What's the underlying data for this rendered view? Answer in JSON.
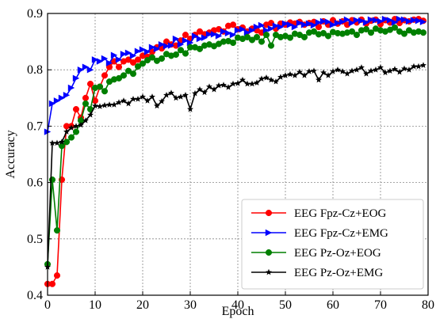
{
  "chart_data": {
    "type": "line",
    "title": "",
    "xlabel": "Epoch",
    "ylabel": "Accuracy",
    "xlim": [
      0,
      80
    ],
    "ylim": [
      0.4,
      0.9
    ],
    "xticks": [
      0,
      10,
      20,
      30,
      40,
      50,
      60,
      70,
      80
    ],
    "yticks": [
      0.4,
      0.5,
      0.6,
      0.7,
      0.8,
      0.9
    ],
    "grid": true,
    "legend_position": "bottom-right",
    "x": [
      0,
      1,
      2,
      3,
      4,
      5,
      6,
      7,
      8,
      9,
      10,
      11,
      12,
      13,
      14,
      15,
      16,
      17,
      18,
      19,
      20,
      21,
      22,
      23,
      24,
      25,
      26,
      27,
      28,
      29,
      30,
      31,
      32,
      33,
      34,
      35,
      36,
      37,
      38,
      39,
      40,
      41,
      42,
      43,
      44,
      45,
      46,
      47,
      48,
      49,
      50,
      51,
      52,
      53,
      54,
      55,
      56,
      57,
      58,
      59,
      60,
      61,
      62,
      63,
      64,
      65,
      66,
      67,
      68,
      69,
      70,
      71,
      72,
      73,
      74,
      75,
      76,
      77,
      78,
      79
    ],
    "series": [
      {
        "name": "EEG Fpz-Cz+EOG",
        "color": "#ff0000",
        "marker": "circle",
        "values": [
          0.42,
          0.42,
          0.435,
          0.605,
          0.7,
          0.7,
          0.73,
          0.715,
          0.75,
          0.775,
          0.745,
          0.77,
          0.79,
          0.805,
          0.815,
          0.805,
          0.815,
          0.818,
          0.813,
          0.818,
          0.825,
          0.823,
          0.832,
          0.84,
          0.838,
          0.85,
          0.845,
          0.843,
          0.852,
          0.862,
          0.855,
          0.862,
          0.868,
          0.863,
          0.866,
          0.87,
          0.872,
          0.868,
          0.878,
          0.88,
          0.872,
          0.875,
          0.868,
          0.873,
          0.87,
          0.866,
          0.88,
          0.883,
          0.873,
          0.882,
          0.88,
          0.884,
          0.882,
          0.885,
          0.88,
          0.883,
          0.885,
          0.876,
          0.886,
          0.88,
          0.888,
          0.882,
          0.886,
          0.88,
          0.888,
          0.884,
          0.889,
          0.882,
          0.887,
          0.889,
          0.881,
          0.888,
          0.884,
          0.89,
          0.883,
          0.888,
          0.886,
          0.889,
          0.89,
          0.887
        ]
      },
      {
        "name": "EEG Fpz-Cz+EMG",
        "color": "#0000ff",
        "marker": "triangle-right",
        "values": [
          0.69,
          0.74,
          0.745,
          0.75,
          0.755,
          0.768,
          0.785,
          0.8,
          0.805,
          0.8,
          0.818,
          0.815,
          0.82,
          0.812,
          0.826,
          0.818,
          0.828,
          0.83,
          0.825,
          0.833,
          0.836,
          0.832,
          0.84,
          0.837,
          0.845,
          0.842,
          0.843,
          0.855,
          0.845,
          0.852,
          0.848,
          0.86,
          0.855,
          0.857,
          0.863,
          0.863,
          0.86,
          0.868,
          0.865,
          0.862,
          0.87,
          0.872,
          0.866,
          0.87,
          0.876,
          0.879,
          0.87,
          0.873,
          0.878,
          0.876,
          0.882,
          0.88,
          0.876,
          0.883,
          0.88,
          0.882,
          0.879,
          0.884,
          0.886,
          0.885,
          0.88,
          0.883,
          0.885,
          0.889,
          0.883,
          0.888,
          0.887,
          0.884,
          0.889,
          0.888,
          0.886,
          0.89,
          0.888,
          0.884,
          0.89,
          0.889,
          0.886,
          0.888,
          0.887,
          0.885
        ]
      },
      {
        "name": "EEG Pz-Oz+EOG",
        "color": "#007f00",
        "marker": "circle",
        "values": [
          0.455,
          0.605,
          0.515,
          0.665,
          0.672,
          0.68,
          0.69,
          0.71,
          0.74,
          0.73,
          0.768,
          0.77,
          0.762,
          0.779,
          0.783,
          0.785,
          0.79,
          0.798,
          0.793,
          0.806,
          0.811,
          0.817,
          0.822,
          0.816,
          0.82,
          0.828,
          0.825,
          0.827,
          0.835,
          0.829,
          0.84,
          0.84,
          0.837,
          0.843,
          0.845,
          0.842,
          0.846,
          0.85,
          0.851,
          0.848,
          0.857,
          0.855,
          0.858,
          0.853,
          0.858,
          0.85,
          0.862,
          0.843,
          0.862,
          0.858,
          0.86,
          0.857,
          0.864,
          0.862,
          0.858,
          0.866,
          0.868,
          0.863,
          0.865,
          0.86,
          0.867,
          0.865,
          0.864,
          0.866,
          0.868,
          0.862,
          0.87,
          0.872,
          0.866,
          0.873,
          0.87,
          0.868,
          0.871,
          0.875,
          0.868,
          0.864,
          0.87,
          0.866,
          0.868,
          0.866
        ]
      },
      {
        "name": "EEG Pz-Oz+EMG",
        "color": "#000000",
        "marker": "star",
        "values": [
          0.45,
          0.67,
          0.67,
          0.672,
          0.69,
          0.697,
          0.7,
          0.702,
          0.71,
          0.72,
          0.736,
          0.735,
          0.737,
          0.738,
          0.738,
          0.742,
          0.745,
          0.74,
          0.748,
          0.748,
          0.752,
          0.745,
          0.752,
          0.736,
          0.744,
          0.755,
          0.759,
          0.75,
          0.752,
          0.755,
          0.73,
          0.758,
          0.765,
          0.76,
          0.77,
          0.765,
          0.772,
          0.773,
          0.769,
          0.775,
          0.776,
          0.782,
          0.775,
          0.775,
          0.777,
          0.784,
          0.786,
          0.782,
          0.779,
          0.787,
          0.79,
          0.792,
          0.79,
          0.796,
          0.79,
          0.797,
          0.798,
          0.782,
          0.795,
          0.79,
          0.797,
          0.8,
          0.797,
          0.793,
          0.798,
          0.8,
          0.804,
          0.793,
          0.798,
          0.8,
          0.804,
          0.795,
          0.798,
          0.801,
          0.796,
          0.802,
          0.8,
          0.806,
          0.806,
          0.808
        ]
      }
    ]
  }
}
